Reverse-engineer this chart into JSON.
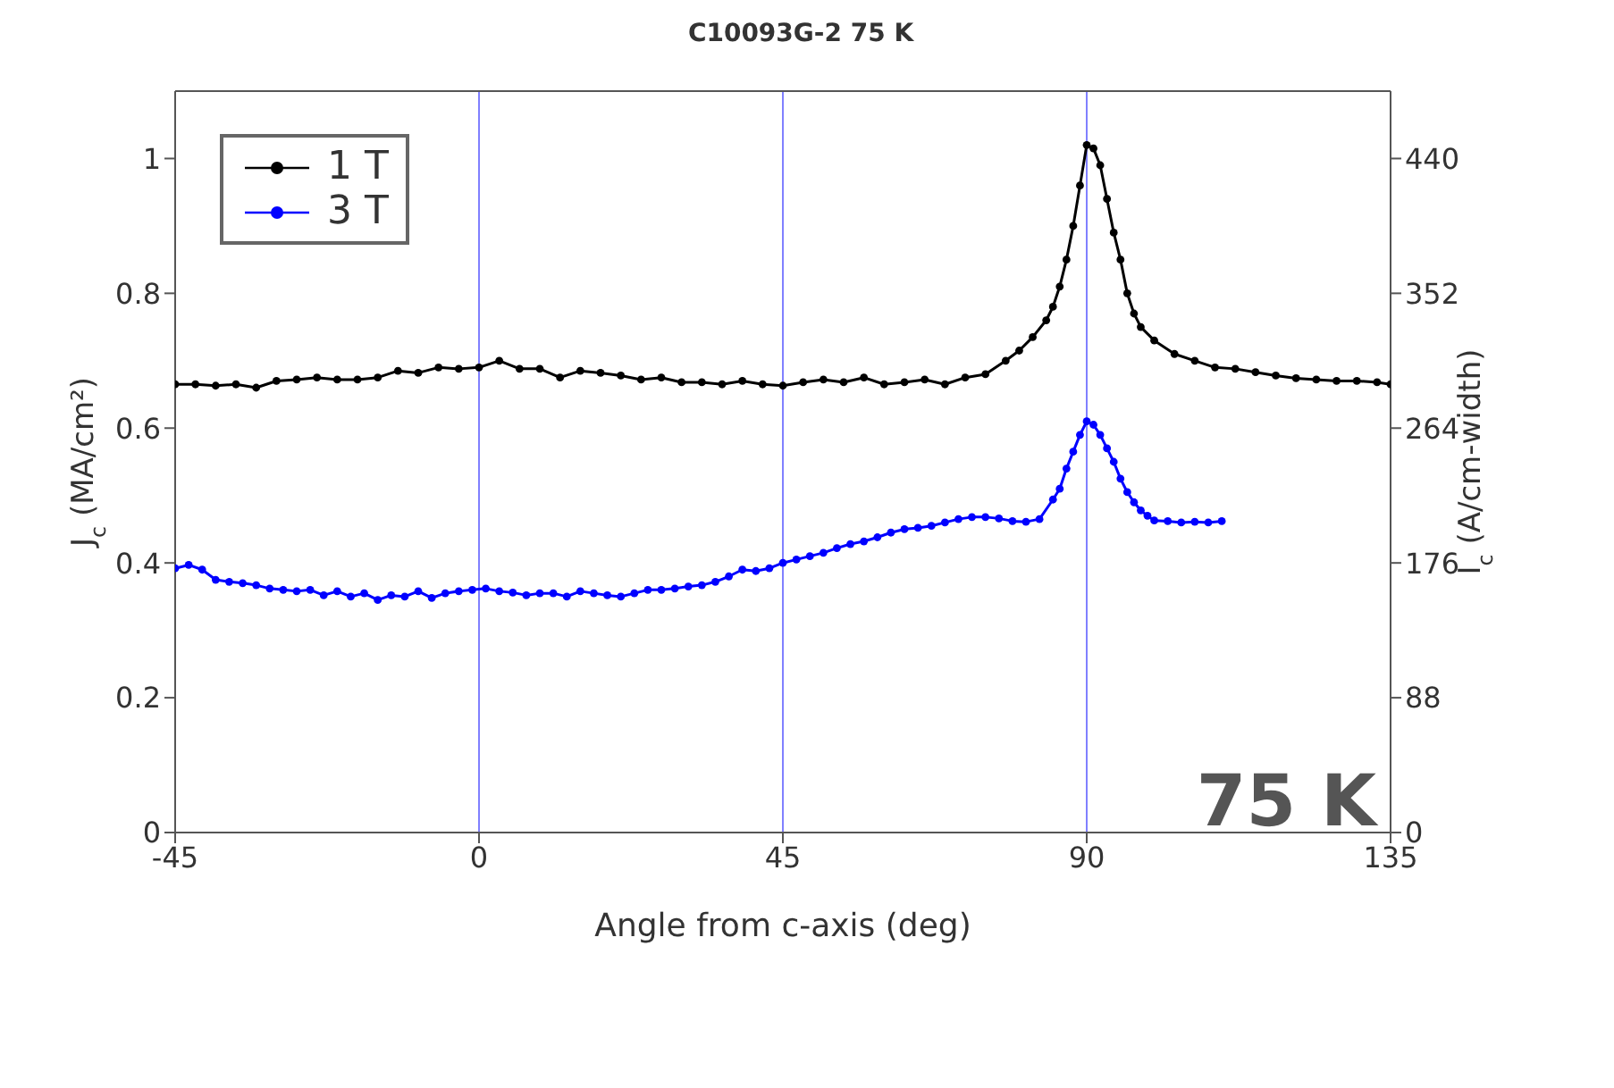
{
  "chart_data": {
    "type": "line",
    "title": "C10093G-2 75 K",
    "xlabel": "Angle from c-axis (deg)",
    "ylabel": "J$_{c}$ (MA/cm²)",
    "y2label": "I$_{c}$ (A/cm-width)",
    "annotations": [
      "75 K"
    ],
    "xlim": [
      -45,
      135
    ],
    "xticks": [
      -45,
      0,
      45,
      90,
      135
    ],
    "ylim": [
      0,
      1.1
    ],
    "yticks": [
      0,
      0.2,
      0.4,
      0.6,
      0.8,
      1
    ],
    "y2lim": [
      0,
      484
    ],
    "y2ticks": [
      0,
      88,
      176,
      264,
      352,
      440
    ],
    "ref_lines": [
      {
        "axis": "x",
        "value": 0,
        "color": "#8080ff"
      },
      {
        "axis": "x",
        "value": 45,
        "color": "#8080ff"
      },
      {
        "axis": "x",
        "value": 90,
        "color": "#8080ff"
      }
    ],
    "legend": "top left",
    "marker": "circle",
    "line_style": "solid",
    "series": [
      {
        "name": "1 T",
        "color": "#000000",
        "x": [
          -45,
          -42,
          -39,
          -36,
          -33,
          -30,
          -27,
          -24,
          -21,
          -18,
          -15,
          -12,
          -9,
          -6,
          -3,
          0,
          3,
          6,
          9,
          12,
          15,
          18,
          21,
          24,
          27,
          30,
          33,
          36,
          39,
          42,
          45,
          48,
          51,
          54,
          57,
          60,
          63,
          66,
          69,
          72,
          75,
          78,
          80,
          82,
          84,
          85,
          86,
          87,
          88,
          89,
          90,
          91,
          92,
          93,
          94,
          95,
          96,
          97,
          98,
          100,
          103,
          106,
          109,
          112,
          115,
          118,
          121,
          124,
          127,
          130,
          133,
          135
        ],
        "values": [
          0.665,
          0.665,
          0.663,
          0.665,
          0.66,
          0.67,
          0.672,
          0.675,
          0.672,
          0.672,
          0.675,
          0.685,
          0.682,
          0.69,
          0.688,
          0.69,
          0.7,
          0.688,
          0.688,
          0.675,
          0.685,
          0.682,
          0.678,
          0.672,
          0.675,
          0.668,
          0.668,
          0.665,
          0.67,
          0.665,
          0.663,
          0.668,
          0.672,
          0.668,
          0.675,
          0.665,
          0.668,
          0.672,
          0.665,
          0.675,
          0.68,
          0.7,
          0.715,
          0.735,
          0.76,
          0.78,
          0.81,
          0.85,
          0.9,
          0.96,
          1.02,
          1.015,
          0.99,
          0.94,
          0.89,
          0.85,
          0.8,
          0.77,
          0.75,
          0.73,
          0.71,
          0.7,
          0.69,
          0.688,
          0.683,
          0.678,
          0.674,
          0.672,
          0.67,
          0.67,
          0.668,
          0.665
        ]
      },
      {
        "name": "3 T",
        "color": "#0000ff",
        "x": [
          -45,
          -43,
          -41,
          -39,
          -37,
          -35,
          -33,
          -31,
          -29,
          -27,
          -25,
          -23,
          -21,
          -19,
          -17,
          -15,
          -13,
          -11,
          -9,
          -7,
          -5,
          -3,
          -1,
          1,
          3,
          5,
          7,
          9,
          11,
          13,
          15,
          17,
          19,
          21,
          23,
          25,
          27,
          29,
          31,
          33,
          35,
          37,
          39,
          41,
          43,
          45,
          47,
          49,
          51,
          53,
          55,
          57,
          59,
          61,
          63,
          65,
          67,
          69,
          71,
          73,
          75,
          77,
          79,
          81,
          83,
          85,
          86,
          87,
          88,
          89,
          90,
          91,
          92,
          93,
          94,
          95,
          96,
          97,
          98,
          99,
          100,
          102,
          104,
          106,
          108,
          110
        ],
        "values": [
          0.392,
          0.397,
          0.39,
          0.375,
          0.372,
          0.37,
          0.367,
          0.362,
          0.36,
          0.358,
          0.36,
          0.352,
          0.358,
          0.35,
          0.355,
          0.345,
          0.352,
          0.35,
          0.358,
          0.348,
          0.355,
          0.358,
          0.36,
          0.362,
          0.358,
          0.356,
          0.352,
          0.355,
          0.355,
          0.35,
          0.358,
          0.355,
          0.352,
          0.35,
          0.355,
          0.36,
          0.36,
          0.362,
          0.365,
          0.367,
          0.372,
          0.38,
          0.39,
          0.388,
          0.392,
          0.4,
          0.405,
          0.41,
          0.415,
          0.422,
          0.428,
          0.432,
          0.438,
          0.445,
          0.45,
          0.452,
          0.455,
          0.46,
          0.465,
          0.468,
          0.468,
          0.466,
          0.462,
          0.461,
          0.465,
          0.494,
          0.51,
          0.54,
          0.565,
          0.59,
          0.61,
          0.605,
          0.59,
          0.57,
          0.55,
          0.525,
          0.505,
          0.49,
          0.478,
          0.47,
          0.463,
          0.462,
          0.46,
          0.461,
          0.46,
          0.462
        ]
      }
    ]
  }
}
